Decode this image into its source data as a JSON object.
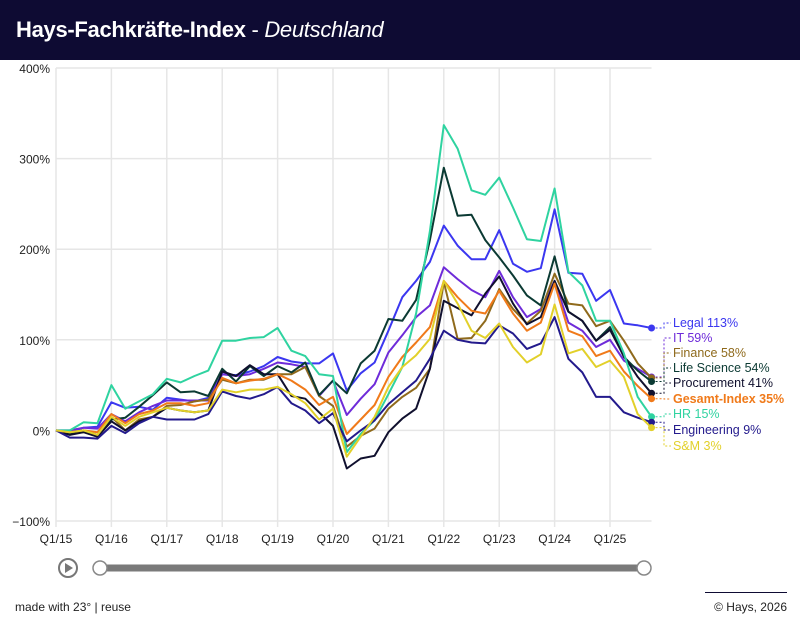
{
  "header": {
    "title": "Hays-Fachkräfte-Index",
    "separator": " - ",
    "subtitle": "Deutschland"
  },
  "footer": {
    "made_with": "made with 23° | reuse",
    "copyright": "© Hays, 2026"
  },
  "colors": {
    "header_bg": "#0e0b33",
    "grid": "#e6e6e6"
  },
  "controls": {
    "play_icon": "play-circle-icon",
    "range_slider": {
      "start": "Q1/15",
      "end": "Q4/25"
    }
  },
  "chart_data": {
    "type": "line",
    "title": "Hays-Fachkräfte-Index - Deutschland",
    "ylim": [
      -100,
      400
    ],
    "yticks": [
      -100,
      0,
      100,
      200,
      300,
      400
    ],
    "ytick_labels": [
      "−100%",
      "0%",
      "100%",
      "200%",
      "300%",
      "400%"
    ],
    "xtick_labels": [
      "Q1/15",
      "Q1/16",
      "Q1/17",
      "Q1/18",
      "Q1/19",
      "Q1/20",
      "Q1/21",
      "Q1/22",
      "Q1/23",
      "Q1/24",
      "Q1/25"
    ],
    "grid": true,
    "legend": "right, end-of-line labels",
    "x": [
      "Q1/15",
      "Q2/15",
      "Q3/15",
      "Q4/15",
      "Q1/16",
      "Q2/16",
      "Q3/16",
      "Q4/16",
      "Q1/17",
      "Q2/17",
      "Q3/17",
      "Q4/17",
      "Q1/18",
      "Q2/18",
      "Q3/18",
      "Q4/18",
      "Q1/19",
      "Q2/19",
      "Q3/19",
      "Q4/19",
      "Q1/20",
      "Q2/20",
      "Q3/20",
      "Q4/20",
      "Q1/21",
      "Q2/21",
      "Q3/21",
      "Q4/21",
      "Q1/22",
      "Q2/22",
      "Q3/22",
      "Q4/22",
      "Q1/23",
      "Q2/23",
      "Q3/23",
      "Q4/23",
      "Q1/24",
      "Q2/24",
      "Q3/24",
      "Q4/24",
      "Q1/25",
      "Q2/25",
      "Q3/25",
      "Q4/25"
    ],
    "series": [
      {
        "name": "Legal",
        "label": "Legal 113%",
        "color": "#3b37f0",
        "bold": false,
        "values": [
          0,
          -2,
          3,
          4,
          31,
          25,
          26,
          23,
          36,
          34,
          32,
          36,
          62,
          61,
          65,
          71,
          81,
          76,
          74,
          74,
          85,
          44,
          63,
          75,
          110,
          147,
          165,
          186,
          226,
          204,
          189,
          189,
          221,
          184,
          175,
          179,
          244,
          174,
          173,
          143,
          155,
          118,
          116,
          113
        ]
      },
      {
        "name": "IT",
        "label": "IT 59%",
        "color": "#6e2bd9",
        "bold": false,
        "values": [
          0,
          0,
          3,
          2,
          18,
          10,
          20,
          27,
          33,
          33,
          33,
          33,
          62,
          60,
          62,
          68,
          75,
          73,
          70,
          38,
          55,
          17,
          35,
          51,
          86,
          105,
          125,
          138,
          180,
          167,
          155,
          147,
          176,
          147,
          125,
          134,
          165,
          119,
          110,
          92,
          100,
          77,
          68,
          59
        ]
      },
      {
        "name": "Finance",
        "label": "Finance 58%",
        "color": "#8f6a1c",
        "bold": false,
        "values": [
          0,
          -3,
          -2,
          -7,
          15,
          0,
          12,
          15,
          27,
          28,
          32,
          34,
          56,
          52,
          56,
          56,
          62,
          62,
          70,
          38,
          27,
          -18,
          -6,
          2,
          24,
          37,
          47,
          68,
          164,
          101,
          102,
          121,
          156,
          134,
          118,
          132,
          173,
          140,
          138,
          115,
          121,
          99,
          74,
          58
        ]
      },
      {
        "name": "Life Science",
        "label": "Life Science 54%",
        "color": "#0b3a33",
        "bold": false,
        "values": [
          0,
          -3,
          0,
          -5,
          12,
          14,
          26,
          39,
          53,
          42,
          43,
          38,
          68,
          54,
          71,
          60,
          71,
          64,
          75,
          39,
          55,
          41,
          74,
          88,
          123,
          121,
          144,
          210,
          290,
          237,
          238,
          210,
          191,
          171,
          149,
          138,
          192,
          131,
          121,
          99,
          114,
          81,
          66,
          54
        ]
      },
      {
        "name": "Procurement",
        "label": "Procurement 41%",
        "color": "#10102e",
        "bold": false,
        "values": [
          0,
          -5,
          -2,
          -7,
          10,
          0,
          10,
          15,
          25,
          22,
          20,
          22,
          65,
          60,
          72,
          62,
          62,
          38,
          35,
          20,
          5,
          -42,
          -31,
          -28,
          -2,
          13,
          24,
          68,
          143,
          135,
          127,
          151,
          170,
          140,
          117,
          125,
          165,
          131,
          121,
          99,
          111,
          82,
          59,
          41
        ]
      },
      {
        "name": "Gesamt-Index",
        "label": "Gesamt-Index 35%",
        "color": "#f07a1a",
        "bold": true,
        "values": [
          0,
          -2,
          0,
          -2,
          18,
          8,
          18,
          22,
          30,
          30,
          27,
          30,
          58,
          52,
          55,
          57,
          62,
          55,
          45,
          28,
          37,
          -4,
          12,
          28,
          59,
          81,
          97,
          114,
          165,
          147,
          132,
          129,
          154,
          129,
          110,
          119,
          162,
          110,
          104,
          82,
          88,
          65,
          49,
          35
        ]
      },
      {
        "name": "HR",
        "label": "HR 15%",
        "color": "#2fd3a0",
        "bold": false,
        "values": [
          0,
          0,
          9,
          8,
          50,
          24,
          32,
          40,
          57,
          53,
          60,
          66,
          99,
          99,
          102,
          103,
          113,
          88,
          82,
          62,
          60,
          -24,
          -4,
          11,
          40,
          70,
          129,
          220,
          337,
          311,
          265,
          260,
          279,
          246,
          211,
          209,
          267,
          175,
          160,
          121,
          121,
          85,
          37,
          15
        ]
      },
      {
        "name": "Engineering",
        "label": "Engineering 9%",
        "color": "#231a8c",
        "bold": false,
        "values": [
          0,
          -8,
          -8,
          -9,
          5,
          -3,
          8,
          15,
          12,
          12,
          12,
          18,
          43,
          38,
          35,
          40,
          48,
          30,
          22,
          8,
          19,
          -12,
          0,
          11,
          29,
          42,
          55,
          79,
          110,
          100,
          97,
          96,
          116,
          107,
          90,
          96,
          125,
          79,
          64,
          37,
          37,
          20,
          14,
          9
        ]
      },
      {
        "name": "S&M",
        "label": "S&M 3%",
        "color": "#e2d02a",
        "bold": false,
        "values": [
          0,
          -2,
          0,
          -5,
          15,
          5,
          15,
          20,
          25,
          22,
          20,
          22,
          45,
          42,
          45,
          45,
          48,
          40,
          30,
          12,
          24,
          -29,
          -7,
          15,
          48,
          70,
          83,
          101,
          165,
          140,
          110,
          102,
          118,
          92,
          75,
          84,
          139,
          85,
          90,
          70,
          77,
          59,
          18,
          3
        ]
      }
    ]
  }
}
